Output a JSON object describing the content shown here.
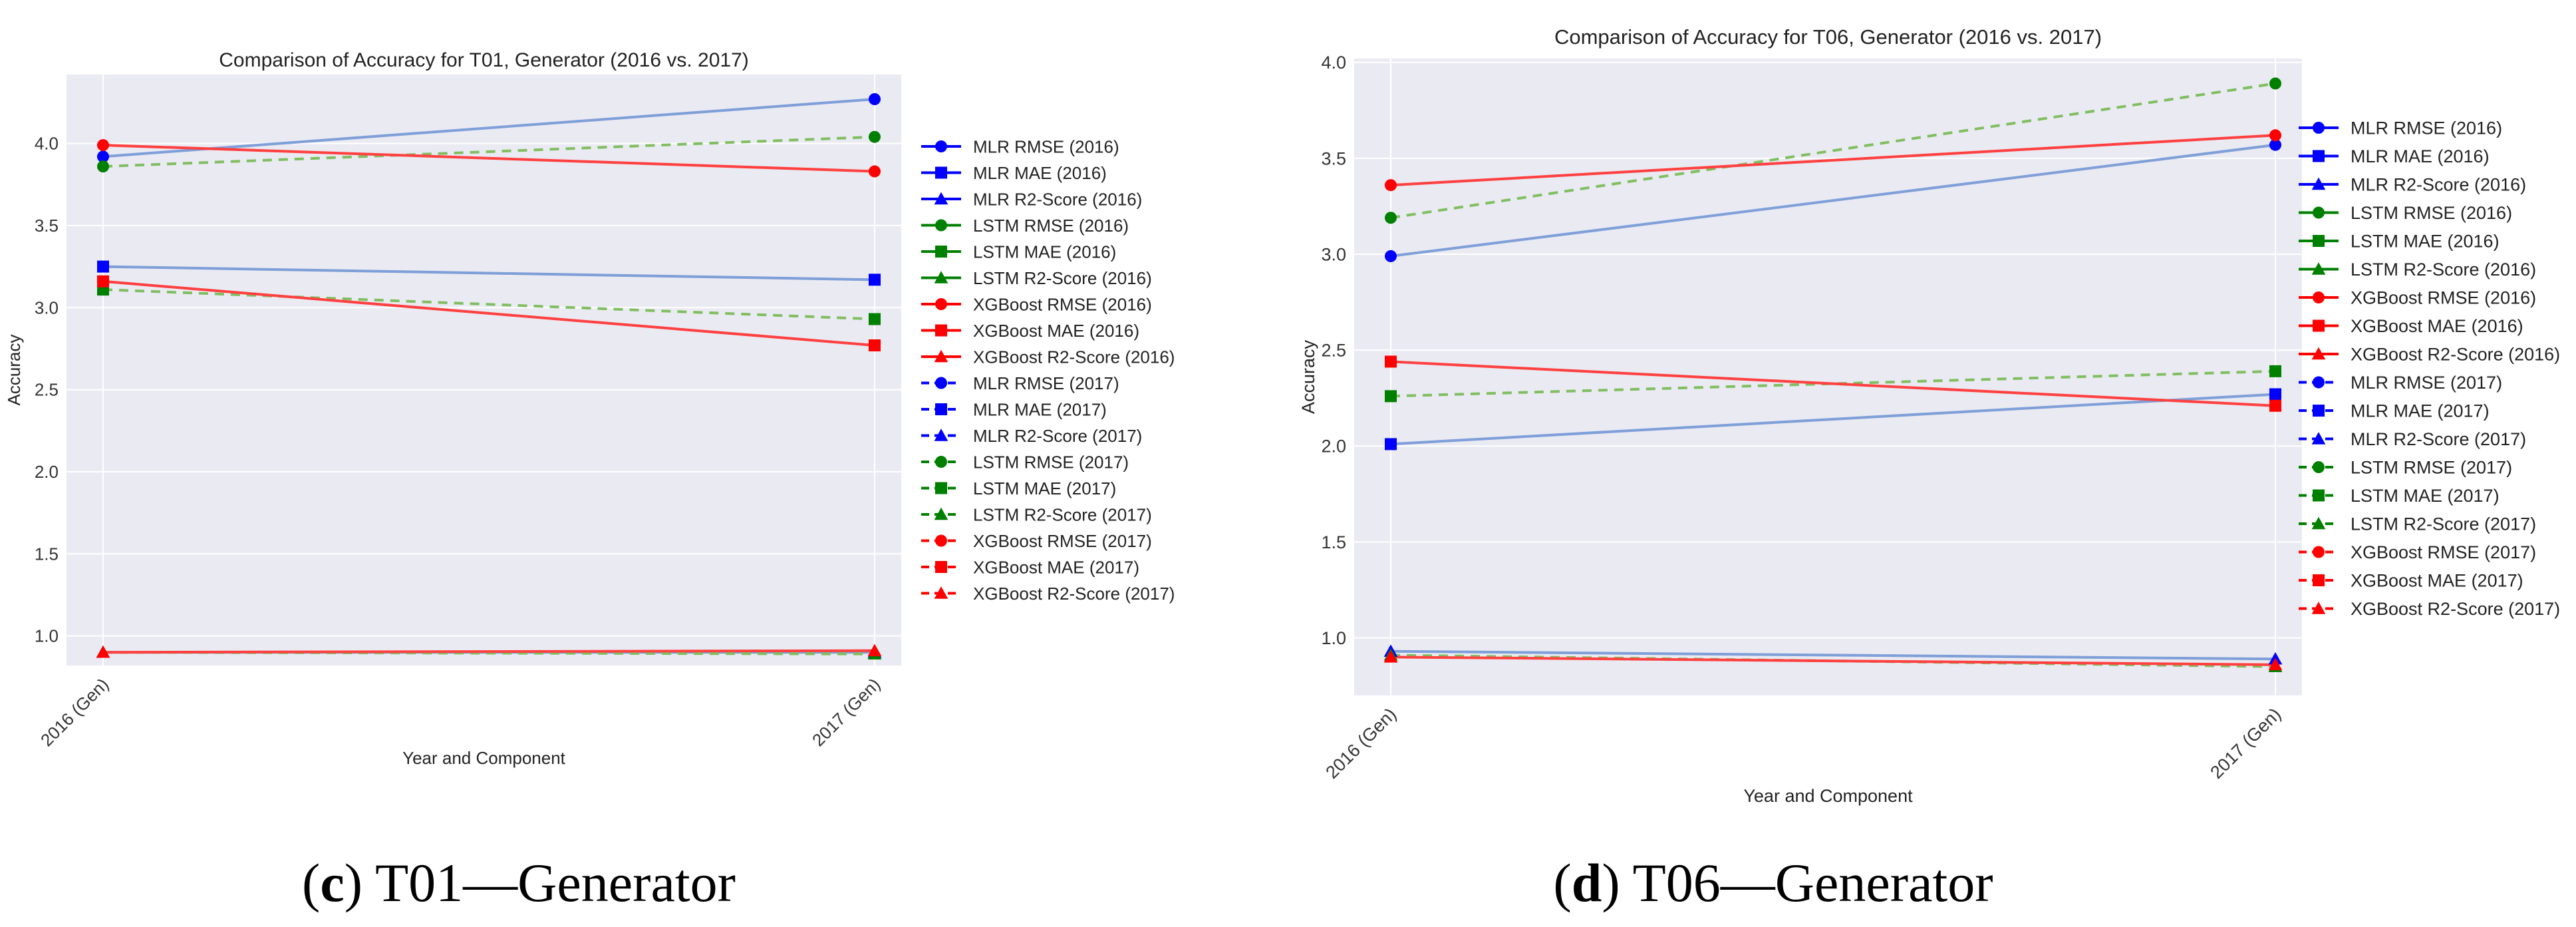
{
  "legend_entries": [
    {
      "label": "MLR RMSE (2016)",
      "color": "#0000ff",
      "marker": "circle",
      "dash": false
    },
    {
      "label": "MLR MAE (2016)",
      "color": "#0000ff",
      "marker": "square",
      "dash": false
    },
    {
      "label": "MLR R2-Score (2016)",
      "color": "#0000ff",
      "marker": "triangle",
      "dash": false
    },
    {
      "label": "LSTM RMSE (2016)",
      "color": "#008000",
      "marker": "circle",
      "dash": false
    },
    {
      "label": "LSTM MAE (2016)",
      "color": "#008000",
      "marker": "square",
      "dash": false
    },
    {
      "label": "LSTM R2-Score (2016)",
      "color": "#008000",
      "marker": "triangle",
      "dash": false
    },
    {
      "label": "XGBoost RMSE (2016)",
      "color": "#ff0000",
      "marker": "circle",
      "dash": false
    },
    {
      "label": "XGBoost MAE (2016)",
      "color": "#ff0000",
      "marker": "square",
      "dash": false
    },
    {
      "label": "XGBoost R2-Score (2016)",
      "color": "#ff0000",
      "marker": "triangle",
      "dash": false
    },
    {
      "label": "MLR RMSE (2017)",
      "color": "#0000ff",
      "marker": "circle",
      "dash": true
    },
    {
      "label": "MLR MAE (2017)",
      "color": "#0000ff",
      "marker": "square",
      "dash": true
    },
    {
      "label": "MLR R2-Score (2017)",
      "color": "#0000ff",
      "marker": "triangle",
      "dash": true
    },
    {
      "label": "LSTM RMSE (2017)",
      "color": "#008000",
      "marker": "circle",
      "dash": true
    },
    {
      "label": "LSTM MAE (2017)",
      "color": "#008000",
      "marker": "square",
      "dash": true
    },
    {
      "label": "LSTM R2-Score (2017)",
      "color": "#008000",
      "marker": "triangle",
      "dash": true
    },
    {
      "label": "XGBoost RMSE (2017)",
      "color": "#ff0000",
      "marker": "circle",
      "dash": true
    },
    {
      "label": "XGBoost MAE (2017)",
      "color": "#ff0000",
      "marker": "square",
      "dash": true
    },
    {
      "label": "XGBoost R2-Score (2017)",
      "color": "#ff0000",
      "marker": "triangle",
      "dash": true
    }
  ],
  "colors": {
    "plot_background": "#eaeaf2",
    "grid": "#ffffff",
    "MLR": "#0000ff",
    "LSTM": "#008000",
    "XGBoost": "#ff0000",
    "MLR_line": "#7f9fd8",
    "LSTM_line": "#7fbf5f",
    "XGBoost_line": "#ff4040"
  },
  "chart_data": [
    {
      "id": "c",
      "type": "line",
      "title": "Comparison of Accuracy for T01, Generator (2016 vs. 2017)",
      "xlabel": "Year and Component",
      "ylabel": "Accuracy",
      "categories": [
        "2016 (Gen)",
        "2017 (Gen)"
      ],
      "ylim": [
        0.82,
        4.42
      ],
      "yticks": [
        "1.0",
        "1.5",
        "2.0",
        "2.5",
        "3.0",
        "3.5",
        "4.0"
      ],
      "grid": true,
      "legend_placement": "right outside",
      "caption": {
        "letter": "c",
        "text": ") T01—Generator"
      },
      "series": [
        {
          "model": "MLR",
          "metric": "RMSE",
          "values": [
            3.92,
            4.27
          ]
        },
        {
          "model": "MLR",
          "metric": "MAE",
          "values": [
            3.25,
            3.17
          ]
        },
        {
          "model": "MLR",
          "metric": "R2-Score",
          "values": [
            0.9,
            0.9
          ]
        },
        {
          "model": "LSTM",
          "metric": "RMSE",
          "values": [
            3.86,
            4.04
          ]
        },
        {
          "model": "LSTM",
          "metric": "MAE",
          "values": [
            3.11,
            2.93
          ]
        },
        {
          "model": "LSTM",
          "metric": "R2-Score",
          "values": [
            0.9,
            0.89
          ]
        },
        {
          "model": "XGBoost",
          "metric": "RMSE",
          "values": [
            3.99,
            3.83
          ]
        },
        {
          "model": "XGBoost",
          "metric": "MAE",
          "values": [
            3.16,
            2.77
          ]
        },
        {
          "model": "XGBoost",
          "metric": "R2-Score",
          "values": [
            0.9,
            0.91
          ]
        }
      ]
    },
    {
      "id": "d",
      "type": "line",
      "title": "Comparison of Accuracy for T06, Generator (2016 vs. 2017)",
      "xlabel": "Year and Component",
      "ylabel": "Accuracy",
      "categories": [
        "2016 (Gen)",
        "2017 (Gen)"
      ],
      "ylim": [
        0.7,
        4.02
      ],
      "yticks": [
        "1.0",
        "1.5",
        "2.0",
        "2.5",
        "3.0",
        "3.5",
        "4.0"
      ],
      "grid": true,
      "legend_placement": "right outside",
      "caption": {
        "letter": "d",
        "text": ") T06—Generator"
      },
      "series": [
        {
          "model": "MLR",
          "metric": "RMSE",
          "values": [
            2.99,
            3.57
          ]
        },
        {
          "model": "MLR",
          "metric": "MAE",
          "values": [
            2.01,
            2.27
          ]
        },
        {
          "model": "MLR",
          "metric": "R2-Score",
          "values": [
            0.93,
            0.89
          ]
        },
        {
          "model": "LSTM",
          "metric": "RMSE",
          "values": [
            3.19,
            3.89
          ]
        },
        {
          "model": "LSTM",
          "metric": "MAE",
          "values": [
            2.26,
            2.39
          ]
        },
        {
          "model": "LSTM",
          "metric": "R2-Score",
          "values": [
            0.91,
            0.85
          ]
        },
        {
          "model": "XGBoost",
          "metric": "RMSE",
          "values": [
            3.36,
            3.62
          ]
        },
        {
          "model": "XGBoost",
          "metric": "MAE",
          "values": [
            2.44,
            2.21
          ]
        },
        {
          "model": "XGBoost",
          "metric": "R2-Score",
          "values": [
            0.9,
            0.86
          ]
        }
      ]
    }
  ]
}
